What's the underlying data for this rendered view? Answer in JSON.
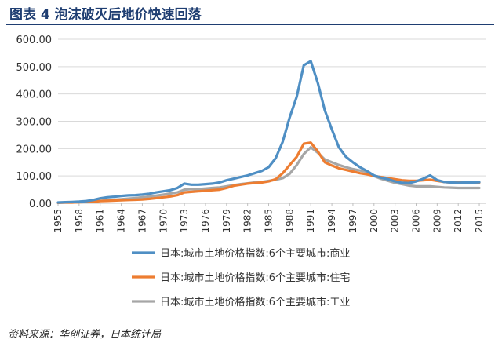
{
  "header": {
    "title": "图表 4   泡沫破灭后地价快速回落"
  },
  "footer": {
    "source": "资料来源：华创证券，日本统计局"
  },
  "chart_data": {
    "type": "line",
    "title": "",
    "xlabel": "",
    "ylabel": "",
    "ylim": [
      0,
      600
    ],
    "yticks": [
      "0.00",
      "100.00",
      "200.00",
      "300.00",
      "400.00",
      "500.00",
      "600.00"
    ],
    "xlim": [
      1955,
      2016
    ],
    "x_tick_labels": [
      "1955",
      "1958",
      "1961",
      "1964",
      "1967",
      "1970",
      "1973",
      "1976",
      "1979",
      "1982",
      "1985",
      "1988",
      "1991",
      "1994",
      "1997",
      "2000",
      "2003",
      "2006",
      "2009",
      "2012",
      "2015"
    ],
    "grid": "horizontal",
    "legend_position": "bottom",
    "x": [
      1955,
      1956,
      1957,
      1958,
      1959,
      1960,
      1961,
      1962,
      1963,
      1964,
      1965,
      1966,
      1967,
      1968,
      1969,
      1970,
      1971,
      1972,
      1973,
      1974,
      1975,
      1976,
      1977,
      1978,
      1979,
      1980,
      1981,
      1982,
      1983,
      1984,
      1985,
      1986,
      1987,
      1988,
      1989,
      1990,
      1991,
      1992,
      1993,
      1994,
      1995,
      1996,
      1997,
      1998,
      1999,
      2000,
      2001,
      2002,
      2003,
      2004,
      2005,
      2006,
      2007,
      2008,
      2009,
      2010,
      2011,
      2012,
      2013,
      2014,
      2015
    ],
    "series": [
      {
        "name": "日本:城市土地价格指数:6个主要城市:商业",
        "color": "#4f8fc4",
        "values": [
          3,
          4,
          5,
          6,
          8,
          12,
          18,
          22,
          24,
          27,
          29,
          30,
          32,
          35,
          40,
          44,
          48,
          56,
          72,
          68,
          68,
          70,
          72,
          76,
          84,
          90,
          96,
          102,
          110,
          118,
          132,
          165,
          225,
          315,
          390,
          505,
          520,
          440,
          340,
          270,
          205,
          170,
          150,
          132,
          118,
          102,
          94,
          88,
          80,
          75,
          74,
          80,
          90,
          102,
          85,
          78,
          76,
          75,
          76,
          76,
          77
        ]
      },
      {
        "name": "日本:城市土地价格指数:6个主要城市:住宅",
        "color": "#ed7d31",
        "values": [
          2,
          3,
          3,
          4,
          5,
          6,
          8,
          9,
          10,
          11,
          12,
          13,
          14,
          16,
          19,
          22,
          25,
          30,
          40,
          42,
          44,
          46,
          48,
          50,
          56,
          64,
          68,
          72,
          74,
          76,
          80,
          88,
          110,
          140,
          170,
          218,
          222,
          190,
          150,
          138,
          128,
          122,
          116,
          110,
          106,
          100,
          96,
          92,
          88,
          84,
          82,
          82,
          84,
          86,
          82,
          78,
          76,
          76,
          76,
          76,
          76
        ]
      },
      {
        "name": "日本:城市土地价格指数:6个主要城市:工业",
        "color": "#a6a6a6",
        "values": [
          2,
          3,
          3,
          4,
          5,
          7,
          9,
          11,
          13,
          15,
          17,
          19,
          22,
          25,
          28,
          32,
          36,
          40,
          50,
          52,
          52,
          54,
          56,
          58,
          62,
          66,
          70,
          73,
          76,
          78,
          82,
          86,
          92,
          108,
          140,
          180,
          205,
          185,
          160,
          150,
          140,
          132,
          125,
          120,
          115,
          100,
          90,
          82,
          75,
          70,
          65,
          62,
          62,
          62,
          60,
          58,
          57,
          56,
          56,
          56,
          56
        ]
      }
    ]
  }
}
